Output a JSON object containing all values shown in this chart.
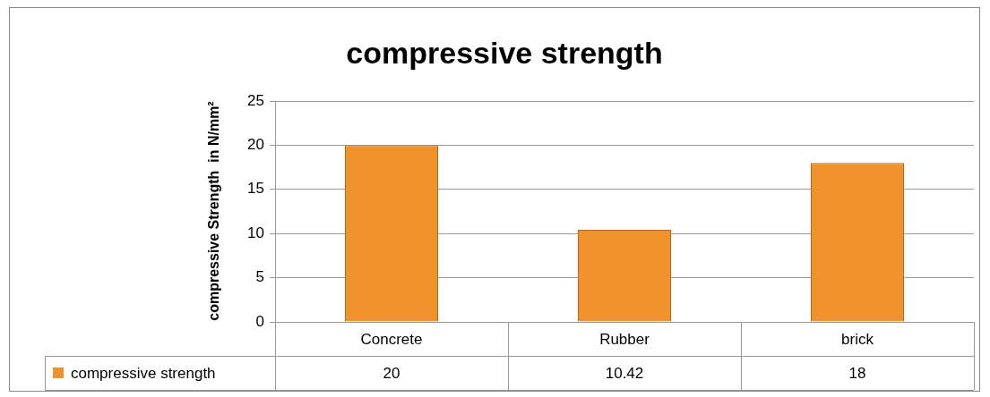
{
  "chart_data": {
    "type": "bar",
    "title": "compressive strength",
    "ylabel": "compressive Strength  in N/mm²",
    "categories": [
      "Concrete",
      "Rubber",
      "brick"
    ],
    "series": [
      {
        "name": "compressive strength",
        "color": "#f0932c",
        "values": [
          20,
          10.42,
          18
        ]
      }
    ],
    "ylim": [
      0,
      25
    ],
    "yticks": [
      0,
      5,
      10,
      15,
      20,
      25
    ],
    "grid": "y",
    "legend": "bottom",
    "data_labels": true
  }
}
